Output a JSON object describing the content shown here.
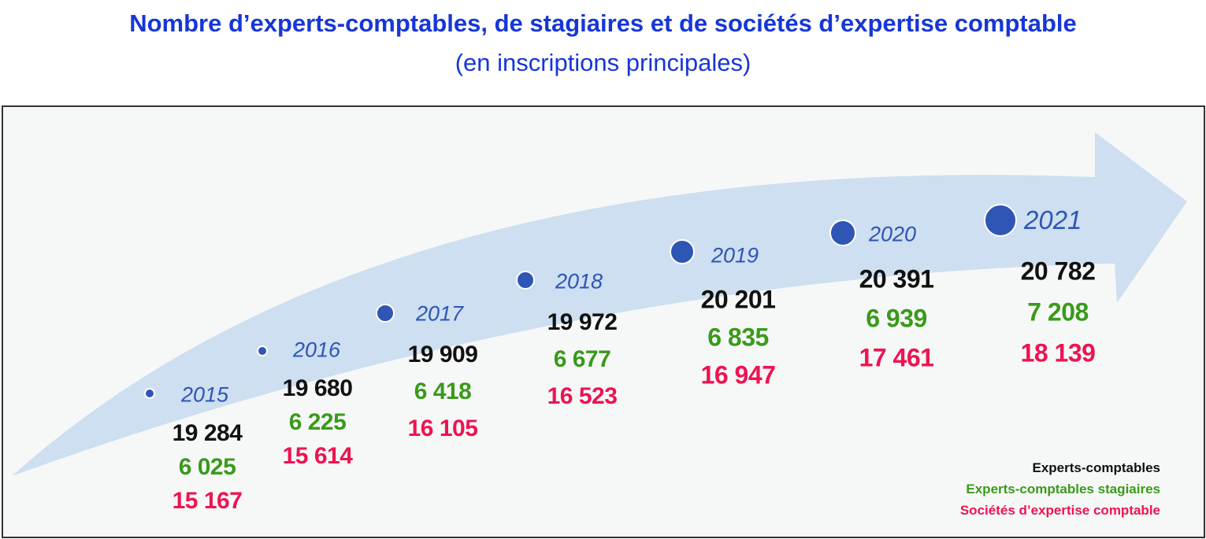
{
  "chart_data": {
    "type": "table",
    "title": "Nombre d’experts-comptables, de stagiaires et de sociétés d’expertise comptable",
    "subtitle": "(en inscriptions principales)",
    "categories": [
      "2015",
      "2016",
      "2017",
      "2018",
      "2019",
      "2020",
      "2021"
    ],
    "series": [
      {
        "name": "Experts-comptables",
        "color": "#111111",
        "values": [
          19284,
          19680,
          19909,
          19972,
          20201,
          20391,
          20782
        ],
        "labels": [
          "19 284",
          "19 680",
          "19 909",
          "19 972",
          "20 201",
          "20 391",
          "20 782"
        ]
      },
      {
        "name": "Experts-comptables stagiaires",
        "color": "#3a9a1a",
        "values": [
          6025,
          6225,
          6418,
          6677,
          6835,
          6939,
          7208
        ],
        "labels": [
          "6 025",
          "6 225",
          "6 418",
          "6 677",
          "6 835",
          "6 939",
          "7 208"
        ]
      },
      {
        "name": "Sociétés d’expertise comptable",
        "color": "#ee1450",
        "values": [
          15167,
          15614,
          16105,
          16523,
          16947,
          17461,
          18139
        ],
        "labels": [
          "15 167",
          "15 614",
          "16 105",
          "16 523",
          "16 947",
          "17 461",
          "18 139"
        ]
      }
    ],
    "legend": "bottom-right",
    "arrow_color": "#cddff0",
    "dot_color": "#2f55b5"
  }
}
